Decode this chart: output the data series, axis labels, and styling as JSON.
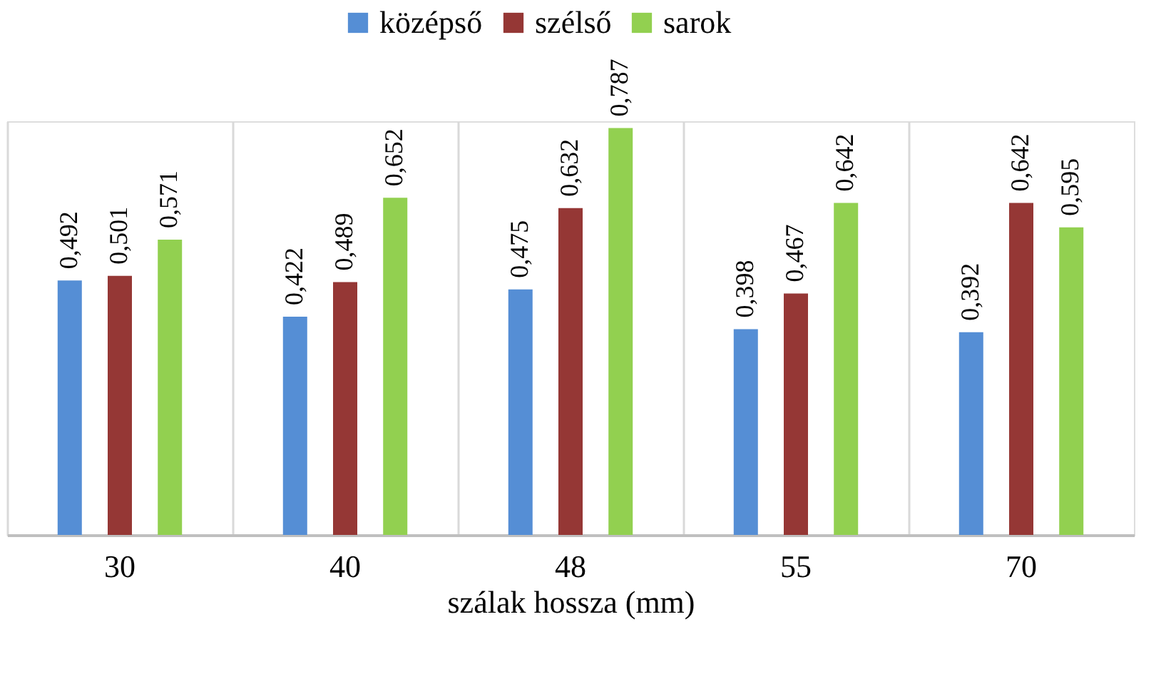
{
  "chart_data": {
    "type": "bar",
    "xlabel": "szálak hossza (mm)",
    "categories": [
      "30",
      "40",
      "48",
      "55",
      "70"
    ],
    "series": [
      {
        "name": "középső",
        "color": "#558ed5",
        "values": [
          0.492,
          0.422,
          0.475,
          0.398,
          0.392
        ],
        "value_labels": [
          "0,492",
          "0,422",
          "0,475",
          "0,398",
          "0,392"
        ]
      },
      {
        "name": "szélső",
        "color": "#953735",
        "values": [
          0.501,
          0.489,
          0.632,
          0.467,
          0.642
        ],
        "value_labels": [
          "0,501",
          "0,489",
          "0,632",
          "0,467",
          "0,642"
        ]
      },
      {
        "name": "sarok",
        "color": "#92d050",
        "values": [
          0.571,
          0.652,
          0.787,
          0.642,
          0.595
        ],
        "value_labels": [
          "0,571",
          "0,652",
          "0,787",
          "0,642",
          "0,595"
        ]
      }
    ],
    "grid": "x",
    "legend": "top",
    "tick_labels": "x"
  }
}
